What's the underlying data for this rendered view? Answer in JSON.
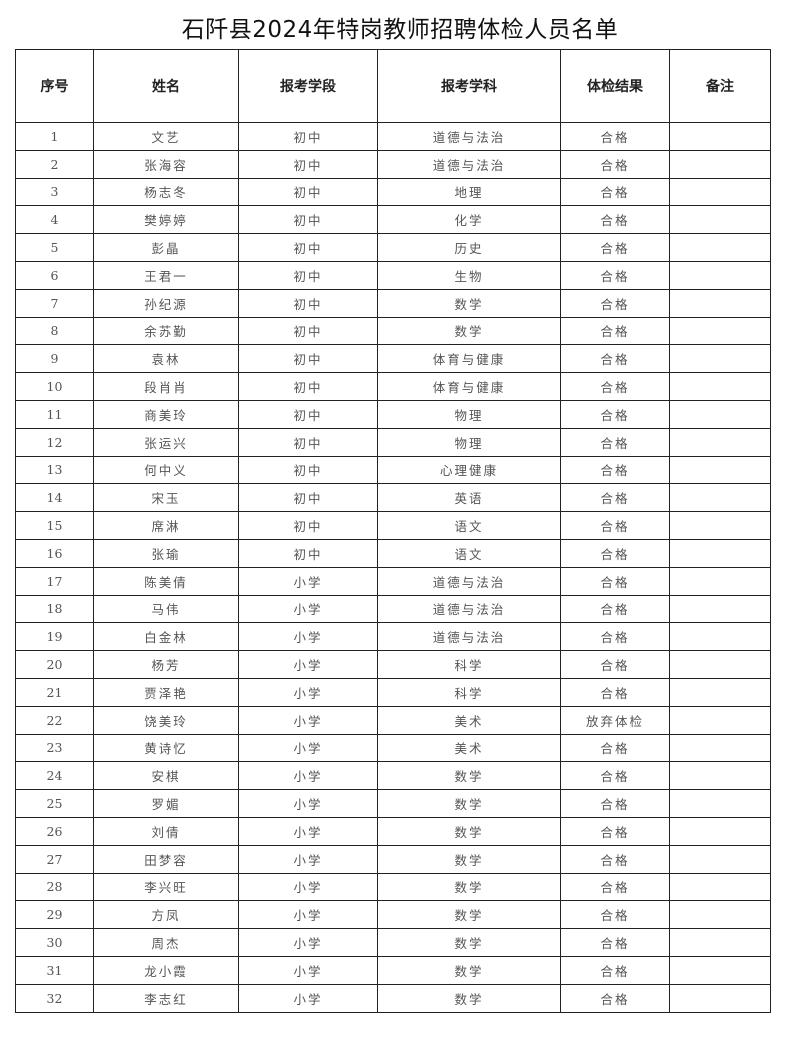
{
  "title": "石阡县2024年特岗教师招聘体检人员名单",
  "columns": [
    "序号",
    "姓名",
    "报考学段",
    "报考学科",
    "体检结果",
    "备注"
  ],
  "rows": [
    [
      "1",
      "文艺",
      "初中",
      "道德与法治",
      "合格",
      ""
    ],
    [
      "2",
      "张海容",
      "初中",
      "道德与法治",
      "合格",
      ""
    ],
    [
      "3",
      "杨志冬",
      "初中",
      "地理",
      "合格",
      ""
    ],
    [
      "4",
      "樊婷婷",
      "初中",
      "化学",
      "合格",
      ""
    ],
    [
      "5",
      "彭晶",
      "初中",
      "历史",
      "合格",
      ""
    ],
    [
      "6",
      "王君一",
      "初中",
      "生物",
      "合格",
      ""
    ],
    [
      "7",
      "孙纪源",
      "初中",
      "数学",
      "合格",
      ""
    ],
    [
      "8",
      "余苏勤",
      "初中",
      "数学",
      "合格",
      ""
    ],
    [
      "9",
      "袁林",
      "初中",
      "体育与健康",
      "合格",
      ""
    ],
    [
      "10",
      "段肖肖",
      "初中",
      "体育与健康",
      "合格",
      ""
    ],
    [
      "11",
      "商美玲",
      "初中",
      "物理",
      "合格",
      ""
    ],
    [
      "12",
      "张运兴",
      "初中",
      "物理",
      "合格",
      ""
    ],
    [
      "13",
      "何中义",
      "初中",
      "心理健康",
      "合格",
      ""
    ],
    [
      "14",
      "宋玉",
      "初中",
      "英语",
      "合格",
      ""
    ],
    [
      "15",
      "席淋",
      "初中",
      "语文",
      "合格",
      ""
    ],
    [
      "16",
      "张瑜",
      "初中",
      "语文",
      "合格",
      ""
    ],
    [
      "17",
      "陈美倩",
      "小学",
      "道德与法治",
      "合格",
      ""
    ],
    [
      "18",
      "马伟",
      "小学",
      "道德与法治",
      "合格",
      ""
    ],
    [
      "19",
      "白金林",
      "小学",
      "道德与法治",
      "合格",
      ""
    ],
    [
      "20",
      "杨芳",
      "小学",
      "科学",
      "合格",
      ""
    ],
    [
      "21",
      "贾泽艳",
      "小学",
      "科学",
      "合格",
      ""
    ],
    [
      "22",
      "饶美玲",
      "小学",
      "美术",
      "放弃体检",
      ""
    ],
    [
      "23",
      "黄诗忆",
      "小学",
      "美术",
      "合格",
      ""
    ],
    [
      "24",
      "安棋",
      "小学",
      "数学",
      "合格",
      ""
    ],
    [
      "25",
      "罗媚",
      "小学",
      "数学",
      "合格",
      ""
    ],
    [
      "26",
      "刘倩",
      "小学",
      "数学",
      "合格",
      ""
    ],
    [
      "27",
      "田梦容",
      "小学",
      "数学",
      "合格",
      ""
    ],
    [
      "28",
      "李兴旺",
      "小学",
      "数学",
      "合格",
      ""
    ],
    [
      "29",
      "方凤",
      "小学",
      "数学",
      "合格",
      ""
    ],
    [
      "30",
      "周杰",
      "小学",
      "数学",
      "合格",
      ""
    ],
    [
      "31",
      "龙小霞",
      "小学",
      "数学",
      "合格",
      ""
    ],
    [
      "32",
      "李志红",
      "小学",
      "数学",
      "合格",
      ""
    ]
  ]
}
